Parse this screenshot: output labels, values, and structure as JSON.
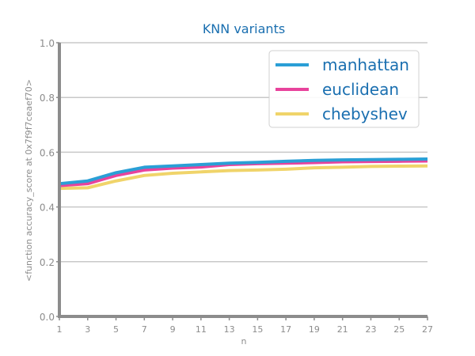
{
  "chart_data": {
    "type": "line",
    "title": "KNN variants",
    "xlabel": "n",
    "ylabel": "<function accuracy_score at 0x7f9f7ceaef70>",
    "x": [
      1,
      3,
      5,
      7,
      9,
      11,
      13,
      15,
      17,
      19,
      21,
      23,
      25,
      27
    ],
    "xlim": [
      1,
      27
    ],
    "ylim": [
      0.0,
      1.0
    ],
    "yticks": [
      "0.0",
      "0.2",
      "0.4",
      "0.6",
      "0.8",
      "1.0"
    ],
    "xticks": [
      "1",
      "3",
      "5",
      "7",
      "9",
      "11",
      "13",
      "15",
      "17",
      "19",
      "21",
      "23",
      "25",
      "27"
    ],
    "grid": "horizontal",
    "legend_position": "top-right",
    "series": [
      {
        "name": "manhattan",
        "color": "#2a9fd6",
        "values": [
          0.485,
          0.495,
          0.525,
          0.545,
          0.55,
          0.555,
          0.56,
          0.563,
          0.567,
          0.57,
          0.572,
          0.573,
          0.574,
          0.575
        ]
      },
      {
        "name": "euclidean",
        "color": "#e8439c",
        "values": [
          0.478,
          0.485,
          0.515,
          0.535,
          0.542,
          0.546,
          0.555,
          0.558,
          0.56,
          0.562,
          0.565,
          0.566,
          0.567,
          0.568
        ]
      },
      {
        "name": "chebyshev",
        "color": "#f0d46a",
        "values": [
          0.468,
          0.47,
          0.495,
          0.515,
          0.523,
          0.528,
          0.533,
          0.535,
          0.538,
          0.543,
          0.545,
          0.548,
          0.549,
          0.55
        ]
      }
    ]
  }
}
